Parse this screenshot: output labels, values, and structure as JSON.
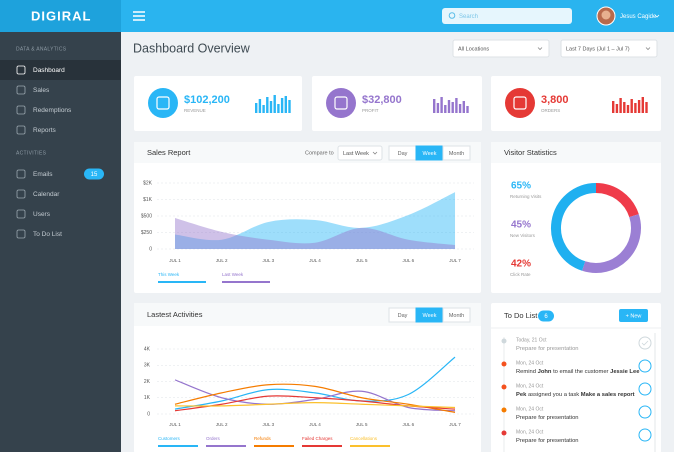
{
  "header": {
    "logo": "DIGIRAL",
    "search_placeholder": "Search",
    "user_name": "Jesus Cagide"
  },
  "sidebar": {
    "sections": [
      {
        "title": "DATA & ANALYTICS",
        "items": [
          {
            "label": "Dashboard",
            "active": true
          },
          {
            "label": "Sales"
          },
          {
            "label": "Redemptions"
          },
          {
            "label": "Reports"
          }
        ]
      },
      {
        "title": "ACTIVITIES",
        "items": [
          {
            "label": "Emails",
            "badge": 15
          },
          {
            "label": "Calendar"
          },
          {
            "label": "Users"
          },
          {
            "label": "To Do List"
          }
        ]
      }
    ]
  },
  "page": {
    "title": "Dashboard Overview",
    "filters": [
      "All Locations",
      "Last 7 Days (Jul 1 – Jul 7)"
    ]
  },
  "stats": [
    {
      "value": "$102,200",
      "label": "REVENUE",
      "color": "#29b6f6",
      "bars": [
        10,
        14,
        8,
        16,
        12,
        18,
        9,
        15,
        17,
        13
      ]
    },
    {
      "value": "$32,800",
      "label": "PROFIT",
      "color": "#9575cd",
      "bars": [
        14,
        10,
        16,
        8,
        13,
        11,
        15,
        9,
        12,
        7
      ]
    },
    {
      "value": "3,800",
      "label": "ORDERS",
      "color": "#e53935",
      "bars": [
        12,
        9,
        15,
        11,
        8,
        14,
        10,
        13,
        16,
        11
      ]
    }
  ],
  "sales_report": {
    "title": "Sales Report",
    "compare_label": "Compare to",
    "compare_value": "Last Week",
    "tabs": [
      "Day",
      "Week",
      "Month"
    ],
    "active_tab": 1,
    "chart": {
      "type": "area",
      "categories": [
        "JUL 1",
        "JUL 2",
        "JUL 3",
        "JUL 4",
        "JUL 5",
        "JUL 6",
        "JUL 7"
      ],
      "yticks": [
        {
          "value": 0,
          "label": "0"
        },
        {
          "value": 250,
          "label": "$250"
        },
        {
          "value": 500,
          "label": "$500"
        },
        {
          "value": 1000,
          "label": "$1K"
        },
        {
          "value": 2000,
          "label": "$2K"
        }
      ],
      "grid": true,
      "series": [
        {
          "name": "This Week",
          "color": "#29b6f6",
          "values": [
            220,
            140,
            410,
            440,
            320,
            530,
            1450
          ]
        },
        {
          "name": "Last Week",
          "color": "#9575cd",
          "values": [
            470,
            260,
            140,
            95,
            320,
            140,
            60
          ]
        }
      ]
    }
  },
  "visitor_statistics": {
    "title": "Visitor Statistics",
    "stats": [
      {
        "value": "65%",
        "label": "Returning Visits",
        "color": "#29b6f6"
      },
      {
        "value": "45%",
        "label": "New Visitors",
        "color": "#9575cd"
      },
      {
        "value": "42%",
        "label": "Click Rate",
        "color": "#e53935"
      }
    ],
    "donut": {
      "type": "pie",
      "values": [
        20,
        35,
        45
      ],
      "colors": [
        "#ef3b4a",
        "#9b7fd4",
        "#1fb0f0"
      ]
    }
  },
  "activities": {
    "title": "Lastest Activities",
    "tabs": [
      "Day",
      "Week",
      "Month"
    ],
    "active_tab": 1,
    "chart": {
      "type": "line",
      "categories": [
        "JUL 1",
        "JUL 2",
        "JUL 3",
        "JUL 4",
        "JUL 5",
        "JUL 6",
        "JUL 7"
      ],
      "ylim": [
        0,
        4000
      ],
      "yticks": [
        0,
        {
          "value": 1000,
          "label": "1K"
        },
        {
          "value": 2000,
          "label": "2K"
        },
        {
          "value": 3000,
          "label": "3K"
        },
        {
          "value": 4000,
          "label": "4K"
        }
      ],
      "grid": true,
      "series": [
        {
          "name": "Customers",
          "color": "#29b6f6",
          "values": [
            300,
            800,
            1500,
            1300,
            800,
            1200,
            3500
          ]
        },
        {
          "name": "Orders",
          "color": "#9575cd",
          "values": [
            2100,
            1000,
            600,
            900,
            1400,
            400,
            200
          ]
        },
        {
          "name": "Refunds",
          "color": "#f57c00",
          "values": [
            600,
            1300,
            1800,
            1700,
            1000,
            600,
            100
          ]
        },
        {
          "name": "Failed Charges",
          "color": "#e53935",
          "values": [
            200,
            600,
            1100,
            1000,
            800,
            500,
            300
          ]
        },
        {
          "name": "Cancellations",
          "color": "#fbc02d",
          "values": [
            500,
            500,
            600,
            700,
            600,
            500,
            400
          ]
        }
      ]
    }
  },
  "todo": {
    "title": "To Do List",
    "count": 6,
    "button": "+ New",
    "items": [
      {
        "date": "Today, 21 Oct",
        "text": [
          {
            "text": "Prepare for presentation"
          }
        ],
        "dot": "#cfd8dc",
        "done": true
      },
      {
        "date": "Mon, 24 Oct",
        "text": [
          {
            "text": "Remind "
          },
          {
            "text": "John",
            "bold": true
          },
          {
            "text": " to email the customer "
          },
          {
            "text": "Jessie Lee",
            "bold": true
          }
        ],
        "dot": "#f4511e"
      },
      {
        "date": "Mon, 24 Oct",
        "text": [
          {
            "text": "Pek",
            "bold": true
          },
          {
            "text": " assigned you a task "
          },
          {
            "text": "Make a sales report",
            "bold": true
          }
        ],
        "dot": "#f4511e"
      },
      {
        "date": "Mon, 24 Oct",
        "text": [
          {
            "text": "Prepare for presentation"
          }
        ],
        "dot": "#f57c00"
      },
      {
        "date": "Mon, 24 Oct",
        "text": [
          {
            "text": "Prepare for presentation"
          }
        ],
        "dot": "#e53935"
      }
    ]
  }
}
